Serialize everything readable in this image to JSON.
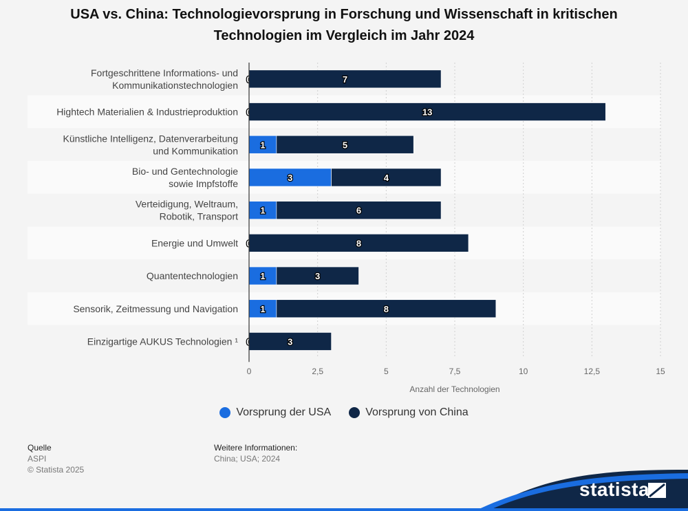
{
  "title_line1": "USA vs. China: Technologievorsprung in Forschung und Wissenschaft in kritischen",
  "title_line2": "Technologien im Vergleich im Jahr 2024",
  "chart_data": {
    "type": "bar",
    "orientation": "horizontal",
    "stacked": true,
    "categories": [
      [
        "Fortgeschrittene Informations- und",
        "Kommunikationstechnologien"
      ],
      [
        "Hightech Materialien & Industrieproduktion"
      ],
      [
        "Künstliche Intelligenz, Datenverarbeitung",
        "und Kommunikation"
      ],
      [
        "Bio- und Gentechnologie",
        "sowie Impfstoffe"
      ],
      [
        "Verteidigung, Weltraum,",
        "Robotik, Transport"
      ],
      [
        "Energie und Umwelt"
      ],
      [
        "Quantentechnologien"
      ],
      [
        "Sensorik, Zeitmessung und Navigation"
      ],
      [
        "Einzigartige AUKUS Technologien ¹"
      ]
    ],
    "series": [
      {
        "name": "Vorsprung der USA",
        "color": "#1a6de0",
        "values": [
          0,
          0,
          1,
          3,
          1,
          0,
          1,
          1,
          0
        ]
      },
      {
        "name": "Vorsprung von China",
        "color": "#0f2747",
        "values": [
          7,
          13,
          5,
          4,
          6,
          8,
          3,
          8,
          3
        ]
      }
    ],
    "xlim": [
      0,
      15
    ],
    "xticks": [
      "0",
      "2,5",
      "5",
      "7,5",
      "10",
      "12,5",
      "15"
    ],
    "xtick_values": [
      0,
      2.5,
      5,
      7.5,
      10,
      12.5,
      15
    ],
    "xlabel": "Anzahl der Technologien",
    "grid": true,
    "legend_position": "bottom"
  },
  "footer": {
    "source_label": "Quelle",
    "source_value": "ASPI",
    "copyright": "© Statista 2025",
    "more_label": "Weitere Informationen:",
    "more_value": "China; USA; 2024"
  },
  "logo_text": "statista"
}
